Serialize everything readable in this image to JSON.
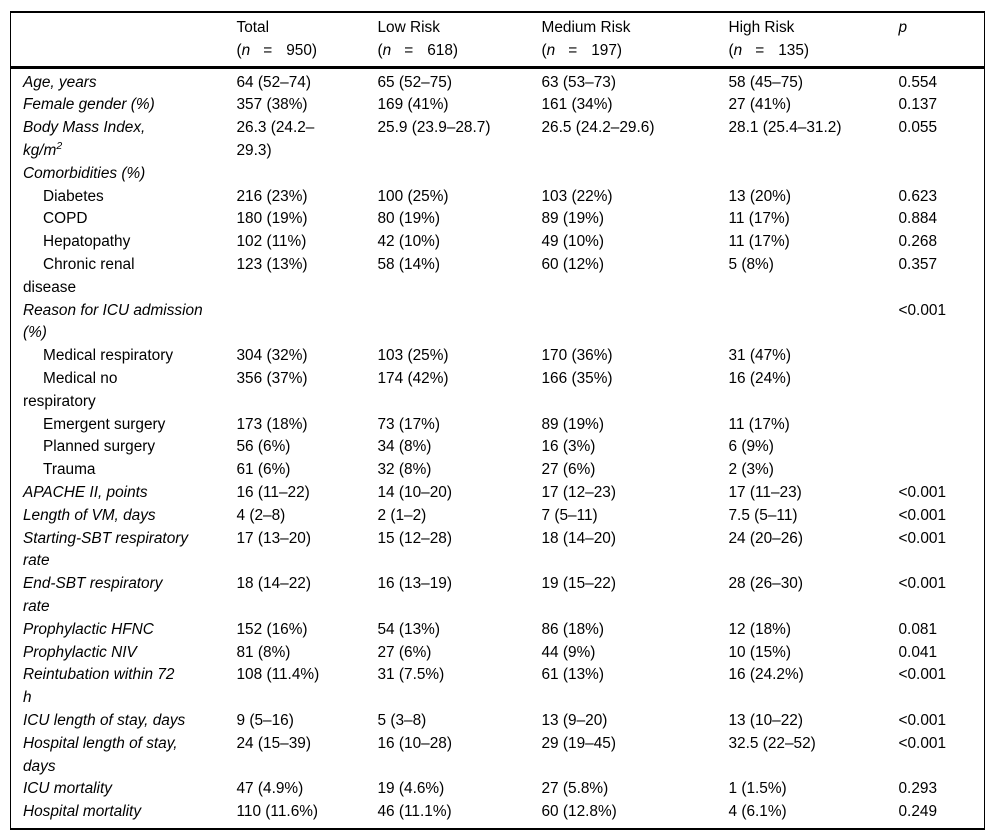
{
  "table": {
    "columns": [
      {
        "label": "Total",
        "n_open": "(",
        "n_var": "n",
        "n_eq": "=",
        "n_val": "950)"
      },
      {
        "label": "Low Risk",
        "n_open": "(",
        "n_var": "n",
        "n_eq": "=",
        "n_val": "618)"
      },
      {
        "label": "Medium Risk",
        "n_open": "(",
        "n_var": "n",
        "n_eq": "=",
        "n_val": "197)"
      },
      {
        "label": "High Risk",
        "n_open": "(",
        "n_var": "n",
        "n_eq": "=",
        "n_val": "135)"
      },
      {
        "label": "p",
        "italic": true
      }
    ],
    "rows": [
      {
        "label": "Age, years",
        "total": "64 (52–74)",
        "low": "65 (52–75)",
        "medium": "63 (53–73)",
        "high": "58 (45–75)",
        "p": "0.554"
      },
      {
        "label": "Female gender (%)",
        "total": "357 (38%)",
        "low": "169 (41%)",
        "medium": "161 (34%)",
        "high": "27 (41%)",
        "p": "0.137"
      },
      {
        "label": "Body Mass Index,\nkg/m",
        "sup": "2",
        "total": "26.3 (24.2–\n29.3)",
        "low": "25.9 (23.9–28.7)",
        "medium": "26.5 (24.2–29.6)",
        "high": "28.1 (25.4–31.2)",
        "p": "0.055"
      },
      {
        "label": "Comorbidities (%)",
        "section": true,
        "total": "",
        "low": "",
        "medium": "",
        "high": "",
        "p": ""
      },
      {
        "label": "Diabetes",
        "indent": true,
        "total": "216 (23%)",
        "low": "100 (25%)",
        "medium": "103 (22%)",
        "high": "13 (20%)",
        "p": "0.623"
      },
      {
        "label": "COPD",
        "indent": true,
        "total": "180 (19%)",
        "low": "80 (19%)",
        "medium": "89 (19%)",
        "high": "11 (17%)",
        "p": "0.884"
      },
      {
        "label": "Hepatopathy",
        "indent": true,
        "total": "102 (11%)",
        "low": "42 (10%)",
        "medium": "49 (10%)",
        "high": "11 (17%)",
        "p": "0.268"
      },
      {
        "label": "Chronic renal\ndisease",
        "indent": true,
        "total": "123 (13%)",
        "low": "58 (14%)",
        "medium": "60 (12%)",
        "high": "5 (8%)",
        "p": "0.357"
      },
      {
        "label": "Reason for ICU admission (%)",
        "section": true,
        "total": "",
        "low": "",
        "medium": "",
        "high": "",
        "p": "<0.001"
      },
      {
        "label": "Medical respiratory",
        "indent": true,
        "total": "304 (32%)",
        "low": "103 (25%)",
        "medium": "170 (36%)",
        "high": "31 (47%)",
        "p": ""
      },
      {
        "label": "Medical no\nrespiratory",
        "indent": true,
        "total": "356 (37%)",
        "low": "174 (42%)",
        "medium": "166 (35%)",
        "high": "16 (24%)",
        "p": ""
      },
      {
        "label": "Emergent surgery",
        "indent": true,
        "total": "173 (18%)",
        "low": "73 (17%)",
        "medium": "89 (19%)",
        "high": "11 (17%)",
        "p": ""
      },
      {
        "label": "Planned surgery",
        "indent": true,
        "total": "56 (6%)",
        "low": "34 (8%)",
        "medium": "16 (3%)",
        "high": "6 (9%)",
        "p": ""
      },
      {
        "label": "Trauma",
        "indent": true,
        "total": "61 (6%)",
        "low": "32 (8%)",
        "medium": "27 (6%)",
        "high": "2 (3%)",
        "p": ""
      },
      {
        "label": "APACHE II, points",
        "total": "16 (11–22)",
        "low": "14 (10–20)",
        "medium": "17 (12–23)",
        "high": "17 (11–23)",
        "p": "<0.001"
      },
      {
        "label": "Length of VM, days",
        "total": "4 (2–8)",
        "low": "2 (1–2)",
        "medium": "7 (5–11)",
        "high": "7.5 (5–11)",
        "p": "<0.001"
      },
      {
        "label": "Starting-SBT respiratory\nrate",
        "total": "17 (13–20)",
        "low": "15 (12–28)",
        "medium": "18 (14–20)",
        "high": "24 (20–26)",
        "p": "<0.001"
      },
      {
        "label": "End-SBT respiratory\nrate",
        "total": "18 (14–22)",
        "low": "16 (13–19)",
        "medium": "19 (15–22)",
        "high": "28 (26–30)",
        "p": "<0.001"
      },
      {
        "label": "Prophylactic HFNC",
        "total": "152 (16%)",
        "low": "54 (13%)",
        "medium": "86 (18%)",
        "high": "12 (18%)",
        "p": "0.081"
      },
      {
        "label": "Prophylactic NIV",
        "total": "81 (8%)",
        "low": "27 (6%)",
        "medium": "44 (9%)",
        "high": "10 (15%)",
        "p": "0.041"
      },
      {
        "label": "Reintubation within 72\nh",
        "total": "108 (11.4%)",
        "low": "31 (7.5%)",
        "medium": "61 (13%)",
        "high": "16 (24.2%)",
        "p": "<0.001"
      },
      {
        "label": "ICU length of stay, days",
        "total": "9 (5–16)",
        "low": "5 (3–8)",
        "medium": "13 (9–20)",
        "high": "13 (10–22)",
        "p": "<0.001"
      },
      {
        "label": "Hospital length of stay,\ndays",
        "total": "24 (15–39)",
        "low": "16 (10–28)",
        "medium": "29 (19–45)",
        "high": "32.5 (22–52)",
        "p": "<0.001"
      },
      {
        "label": "ICU mortality",
        "total": "47 (4.9%)",
        "low": "19 (4.6%)",
        "medium": "27 (5.8%)",
        "high": "1 (1.5%)",
        "p": "0.293"
      },
      {
        "label": "Hospital mortality",
        "total": "110 (11.6%)",
        "low": "46 (11.1%)",
        "medium": "60 (12.8%)",
        "high": "4 (6.1%)",
        "p": "0.249"
      }
    ]
  }
}
